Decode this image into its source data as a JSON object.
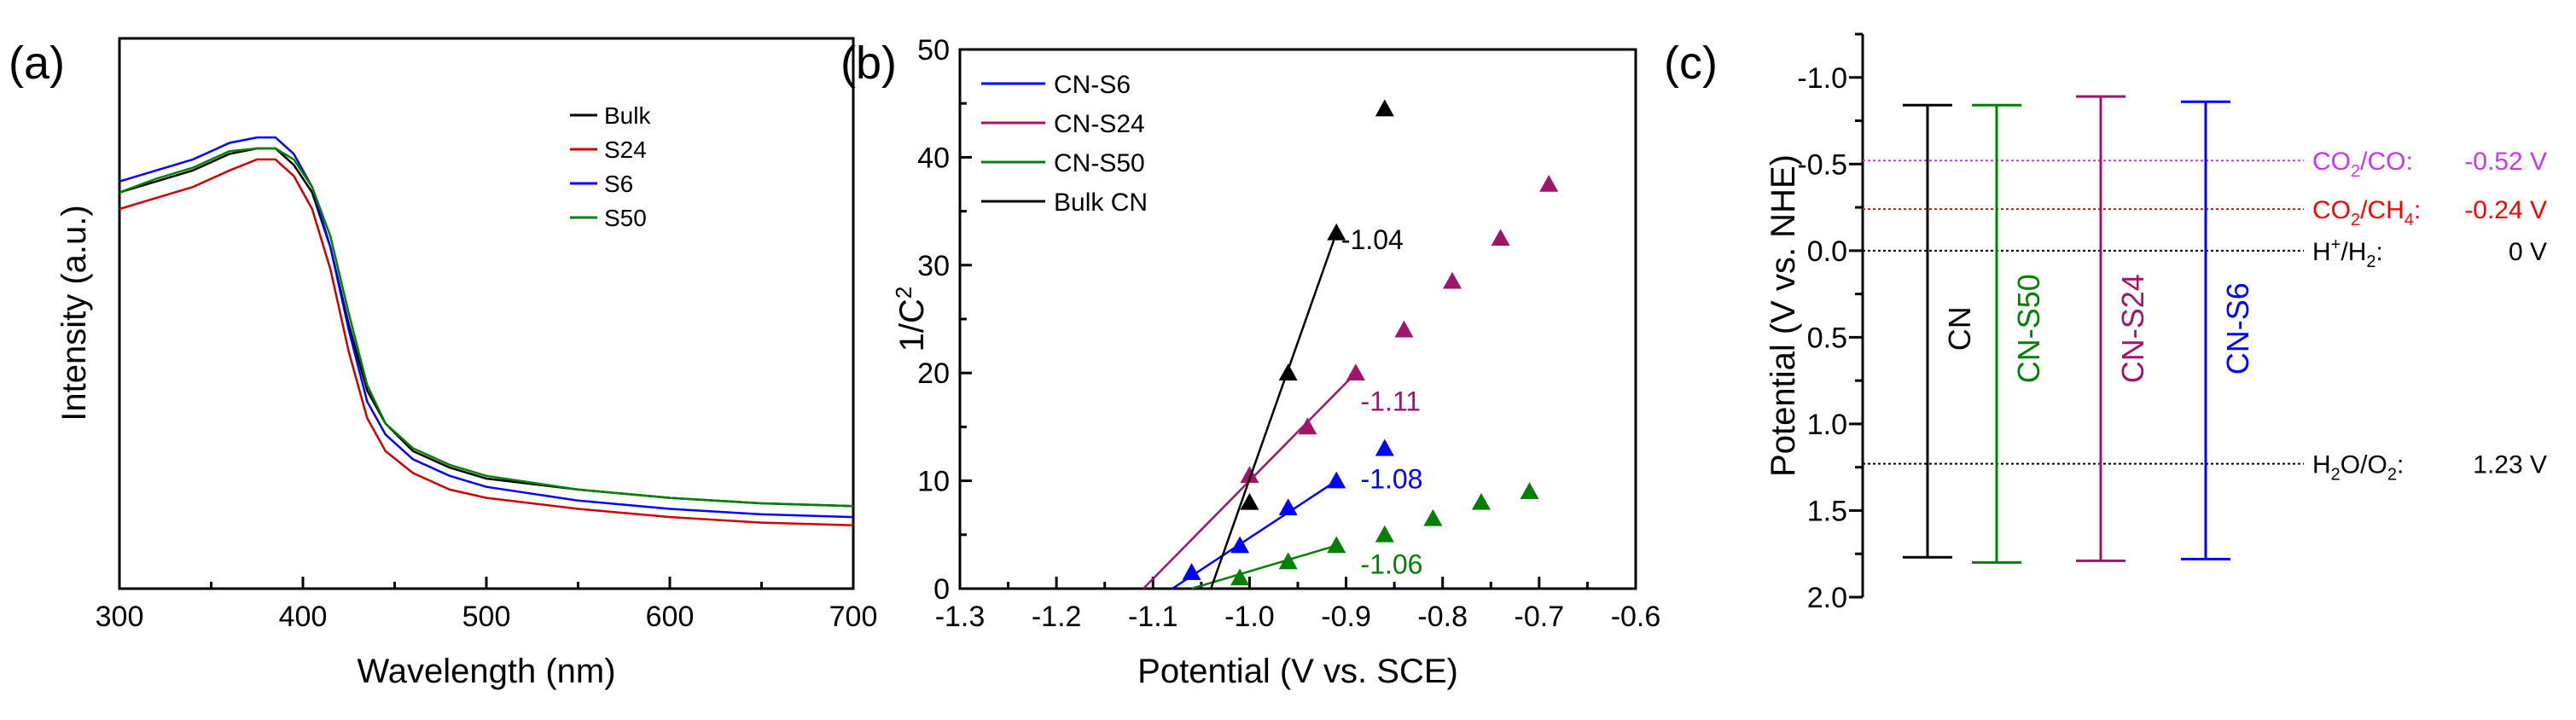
{
  "chart_data": [
    {
      "panel_label": "(a)",
      "type": "line",
      "title": "",
      "xlabel": "Wavelength (nm)",
      "ylabel": "Intensity (a.u.)",
      "xlim": [
        300,
        700
      ],
      "ylim": [
        0,
        1
      ],
      "xticks": [
        "300",
        "400",
        "500",
        "600",
        "700"
      ],
      "legend_position": "top-right",
      "series": [
        {
          "name": "Bulk",
          "color": "#000000",
          "x": [
            300,
            320,
            340,
            360,
            375,
            385,
            395,
            405,
            415,
            425,
            435,
            445,
            460,
            480,
            500,
            550,
            600,
            650,
            700
          ],
          "y": [
            0.72,
            0.74,
            0.76,
            0.79,
            0.8,
            0.8,
            0.77,
            0.72,
            0.62,
            0.48,
            0.36,
            0.3,
            0.25,
            0.22,
            0.2,
            0.18,
            0.165,
            0.155,
            0.15
          ]
        },
        {
          "name": "S24",
          "color": "#cc0000",
          "x": [
            300,
            320,
            340,
            360,
            375,
            385,
            395,
            405,
            415,
            425,
            435,
            445,
            460,
            480,
            500,
            550,
            600,
            650,
            700
          ],
          "y": [
            0.69,
            0.71,
            0.73,
            0.76,
            0.78,
            0.78,
            0.75,
            0.69,
            0.58,
            0.43,
            0.31,
            0.25,
            0.21,
            0.18,
            0.165,
            0.145,
            0.13,
            0.12,
            0.115
          ]
        },
        {
          "name": "S6",
          "color": "#0000ff",
          "x": [
            300,
            320,
            340,
            360,
            375,
            385,
            395,
            405,
            415,
            425,
            435,
            445,
            460,
            480,
            500,
            550,
            600,
            650,
            700
          ],
          "y": [
            0.74,
            0.76,
            0.78,
            0.81,
            0.82,
            0.82,
            0.79,
            0.73,
            0.62,
            0.47,
            0.34,
            0.28,
            0.235,
            0.205,
            0.185,
            0.16,
            0.145,
            0.135,
            0.13
          ]
        },
        {
          "name": "S50",
          "color": "#008000",
          "x": [
            300,
            320,
            340,
            360,
            375,
            385,
            395,
            405,
            415,
            425,
            435,
            445,
            460,
            480,
            500,
            550,
            600,
            650,
            700
          ],
          "y": [
            0.72,
            0.745,
            0.765,
            0.795,
            0.8,
            0.8,
            0.78,
            0.73,
            0.64,
            0.5,
            0.37,
            0.3,
            0.255,
            0.225,
            0.205,
            0.18,
            0.165,
            0.155,
            0.15
          ]
        }
      ]
    },
    {
      "panel_label": "(b)",
      "type": "scatter",
      "title": "",
      "xlabel": "Potential (V vs. SCE)",
      "ylabel": "1/C",
      "ylabel_sup": "2",
      "xlim": [
        -1.3,
        -0.6
      ],
      "ylim": [
        0,
        50
      ],
      "xticks": [
        "-1.3",
        "-1.2",
        "-1.1",
        "-1.0",
        "-0.9",
        "-0.8",
        "-0.7",
        "-0.6"
      ],
      "yticks": [
        "0",
        "10",
        "20",
        "30",
        "40",
        "50"
      ],
      "legend_position": "top-left",
      "series": [
        {
          "name": "CN-S6",
          "color": "#0000ff",
          "x": [
            -1.06,
            -1.01,
            -0.96,
            -0.91,
            -0.86
          ],
          "y": [
            1.5,
            4.0,
            7.5,
            10.0,
            13.0
          ],
          "fit": {
            "x": [
              -1.08,
              -0.91
            ],
            "y": [
              0,
              10.0
            ]
          },
          "annotation": "-1.08",
          "annotation_at": [
            -0.885,
            9.3
          ]
        },
        {
          "name": "CN-S24",
          "color": "#a0156a",
          "x": [
            -1.0,
            -0.94,
            -0.89,
            -0.84,
            -0.79,
            -0.74,
            -0.69
          ],
          "y": [
            10.5,
            15.0,
            20.0,
            24.0,
            28.5,
            32.5,
            37.5
          ],
          "fit": {
            "x": [
              -1.11,
              -0.89
            ],
            "y": [
              0,
              20.0
            ]
          },
          "annotation": "-1.11",
          "annotation_at": [
            -0.885,
            16.5
          ]
        },
        {
          "name": "CN-S50",
          "color": "#008000",
          "x": [
            -1.01,
            -0.96,
            -0.91,
            -0.86,
            -0.81,
            -0.76,
            -0.71
          ],
          "y": [
            1.0,
            2.5,
            4.0,
            5.0,
            6.5,
            8.0,
            9.0
          ],
          "fit": {
            "x": [
              -1.06,
              -0.91
            ],
            "y": [
              0,
              4.0
            ]
          },
          "annotation": "-1.06",
          "annotation_at": [
            -0.885,
            1.4
          ]
        },
        {
          "name": "Bulk CN",
          "color": "#000000",
          "x": [
            -1.0,
            -0.96,
            -0.91,
            -0.86
          ],
          "y": [
            8.0,
            20.0,
            33.0,
            44.5
          ],
          "fit": {
            "x": [
              -1.04,
              -0.91
            ],
            "y": [
              0,
              33.0
            ]
          },
          "annotation": "-1.04",
          "annotation_at": [
            -0.905,
            31.5
          ]
        }
      ]
    },
    {
      "panel_label": "(c)",
      "type": "band_diagram",
      "title": "",
      "ylabel": "Potential (V vs. NHE)",
      "ylim": [
        2.0,
        -1.25
      ],
      "yticks": [
        "-1.0",
        "-0.5",
        "0.0",
        "0.5",
        "1.0",
        "1.5",
        "2.0"
      ],
      "bands": [
        {
          "name": "CN",
          "color": "#000000",
          "cb": -0.84,
          "vb": 1.77
        },
        {
          "name": "CN-S50",
          "color": "#008000",
          "cb": -0.84,
          "vb": 1.8
        },
        {
          "name": "CN-S24",
          "color": "#a0156a",
          "cb": -0.89,
          "vb": 1.79
        },
        {
          "name": "CN-S6",
          "color": "#0000ff",
          "cb": -0.86,
          "vb": 1.78
        }
      ],
      "reference_lines": [
        {
          "label_main": "CO",
          "label_sub": "2",
          "label_rest": "/CO:",
          "value_text": "-0.52 V",
          "value": -0.52,
          "color": "#cc33ff"
        },
        {
          "label_main": "CO",
          "label_sub": "2",
          "label_rest": "/CH",
          "label_sub2": "4",
          "label_tail": ":",
          "value_text": "-0.24 V",
          "value": -0.24,
          "color": "#ff0000"
        },
        {
          "label_main": "H",
          "label_sup": "+",
          "label_rest": "/H",
          "label_sub2": "2",
          "label_tail": ":",
          "value_text": "0 V",
          "value": 0.0,
          "color": "#000000"
        },
        {
          "label_main": "H",
          "label_sub": "2",
          "label_rest": "O/O",
          "label_sub2": "2",
          "label_tail": ":",
          "value_text": "1.23 V",
          "value": 1.23,
          "color": "#000000"
        }
      ]
    }
  ]
}
